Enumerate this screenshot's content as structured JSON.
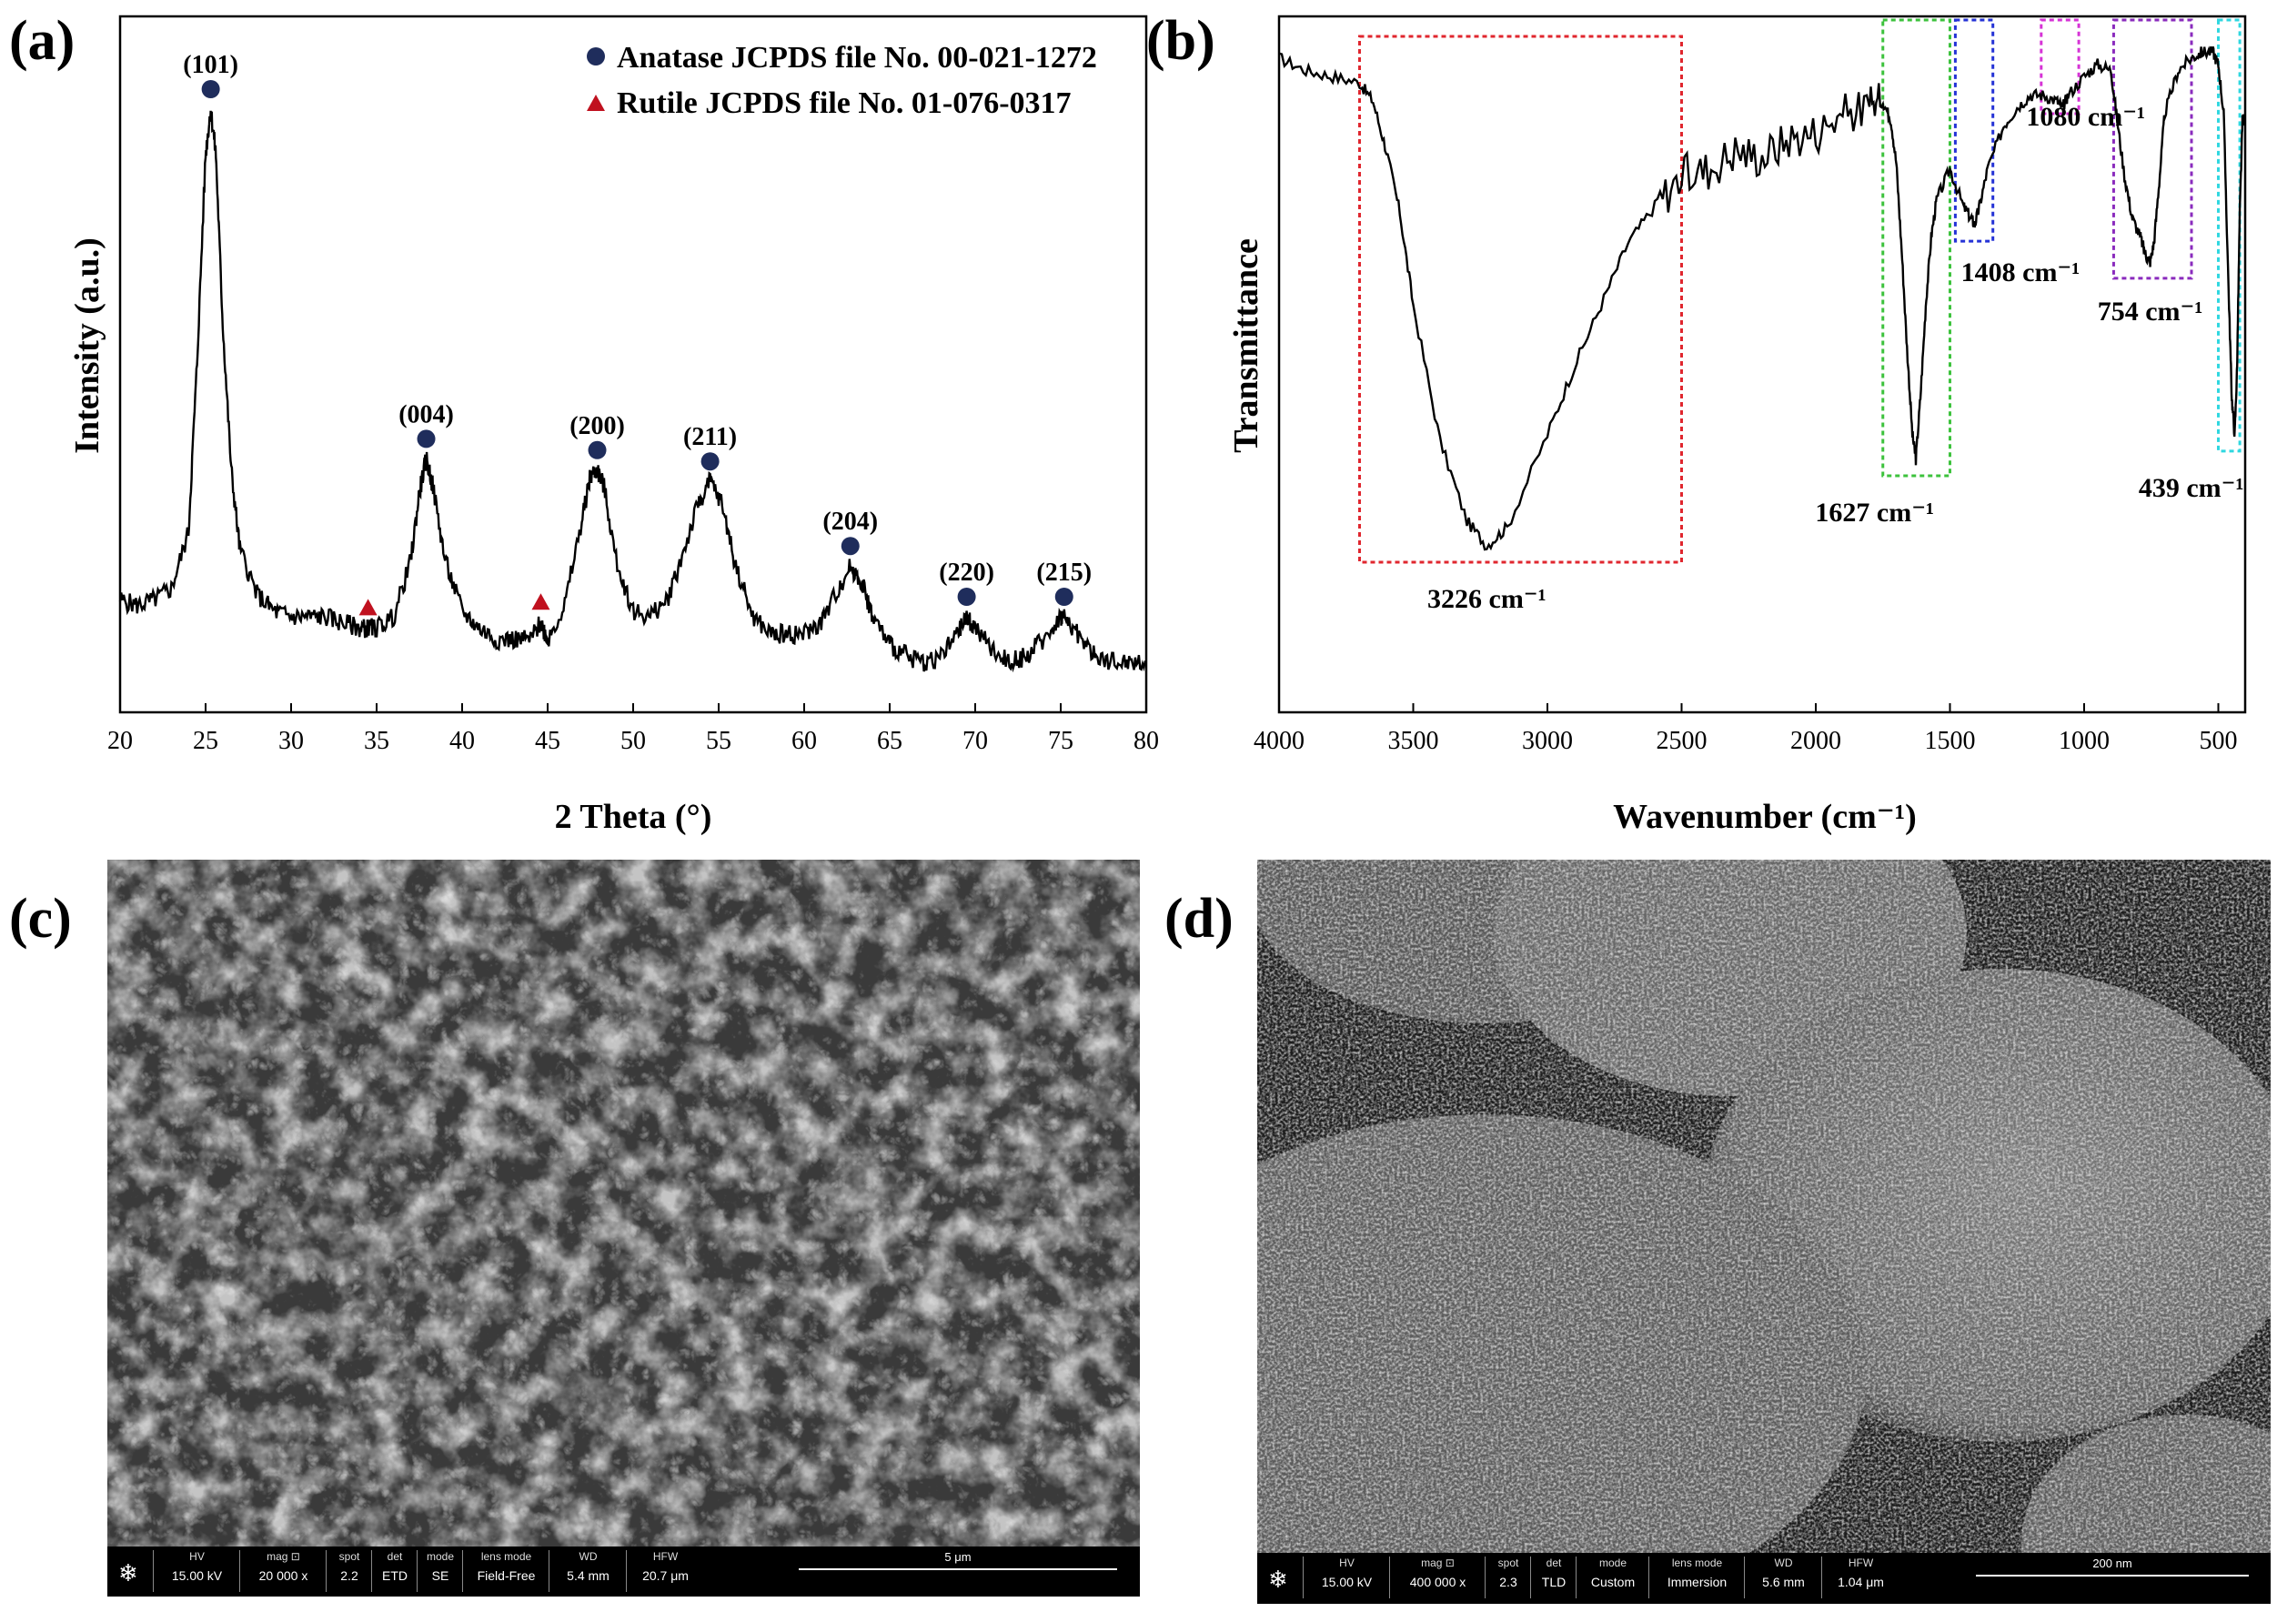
{
  "panel_labels": {
    "a": "(a)",
    "b": "(b)",
    "c": "(c)",
    "d": "(d)"
  },
  "chart_data": [
    {
      "id": "xrd",
      "type": "line",
      "xlabel": "2 Theta (°)",
      "ylabel": "Intensity (a.u.)",
      "xlim": [
        20,
        80
      ],
      "xticks": [
        20,
        25,
        30,
        35,
        40,
        45,
        50,
        55,
        60,
        65,
        70,
        75,
        80
      ],
      "legend": [
        {
          "marker": "circle",
          "color": "#1f2d5c",
          "label": "Anatase JCPDS file No. 00-021-1272"
        },
        {
          "marker": "triangle",
          "color": "#c0111f",
          "label": "Rutile JCPDS file No. 01-076-0317"
        }
      ],
      "legend_position": "top-right",
      "peaks": [
        {
          "x": 25.3,
          "label": "(101)",
          "phase": "anatase"
        },
        {
          "x": 37.9,
          "label": "(004)",
          "phase": "anatase"
        },
        {
          "x": 47.9,
          "label": "(200)",
          "phase": "anatase"
        },
        {
          "x": 54.5,
          "label": "(211)",
          "phase": "anatase"
        },
        {
          "x": 62.7,
          "label": "(204)",
          "phase": "anatase"
        },
        {
          "x": 69.5,
          "label": "(220)",
          "phase": "anatase"
        },
        {
          "x": 75.2,
          "label": "(215)",
          "phase": "anatase"
        },
        {
          "x": 34.5,
          "label": "",
          "phase": "rutile"
        },
        {
          "x": 44.6,
          "label": "",
          "phase": "rutile"
        }
      ],
      "series": [
        {
          "x": [
            20,
            21,
            22,
            23,
            24,
            24.5,
            25,
            25.3,
            25.6,
            26,
            26.5,
            27,
            28,
            29,
            30,
            31,
            32,
            33,
            34,
            34.5,
            35,
            36,
            37,
            37.5,
            37.9,
            38.3,
            39,
            40,
            41,
            42,
            43,
            44,
            44.6,
            45,
            46,
            47,
            47.5,
            47.9,
            48.3,
            49,
            50,
            51,
            52,
            53,
            53.8,
            54.5,
            55.2,
            56,
            57,
            58,
            59,
            60,
            61,
            62,
            62.7,
            63.4,
            64,
            65,
            66,
            67,
            68,
            69,
            69.5,
            70,
            71,
            72,
            73,
            74,
            75,
            75.2,
            76,
            77,
            78,
            79,
            80
          ],
          "y": [
            0.13,
            0.12,
            0.13,
            0.15,
            0.25,
            0.55,
            0.92,
            1.0,
            0.92,
            0.62,
            0.36,
            0.22,
            0.14,
            0.11,
            0.1,
            0.1,
            0.1,
            0.09,
            0.08,
            0.08,
            0.08,
            0.1,
            0.2,
            0.32,
            0.38,
            0.33,
            0.2,
            0.11,
            0.08,
            0.06,
            0.06,
            0.06,
            0.09,
            0.06,
            0.12,
            0.27,
            0.35,
            0.36,
            0.33,
            0.2,
            0.11,
            0.1,
            0.13,
            0.22,
            0.3,
            0.34,
            0.3,
            0.19,
            0.1,
            0.07,
            0.07,
            0.07,
            0.09,
            0.15,
            0.19,
            0.16,
            0.1,
            0.05,
            0.03,
            0.02,
            0.03,
            0.07,
            0.1,
            0.08,
            0.04,
            0.02,
            0.03,
            0.06,
            0.1,
            0.1,
            0.07,
            0.03,
            0.02,
            0.02,
            0.02
          ]
        }
      ]
    },
    {
      "id": "ftir",
      "type": "line",
      "xlabel": "Wavenumber (cm⁻¹)",
      "ylabel": "Transmittance",
      "xlim": [
        4000,
        400
      ],
      "xticks": [
        4000,
        3500,
        3000,
        2500,
        2000,
        1500,
        1000,
        500
      ],
      "series": [
        {
          "x": [
            4000,
            3900,
            3800,
            3700,
            3650,
            3600,
            3550,
            3500,
            3400,
            3300,
            3226,
            3150,
            3000,
            2900,
            2800,
            2700,
            2600,
            2500,
            2400,
            2300,
            2200,
            2100,
            2000,
            1900,
            1800,
            1750,
            1720,
            1700,
            1680,
            1660,
            1640,
            1627,
            1610,
            1590,
            1570,
            1550,
            1500,
            1450,
            1420,
            1408,
            1390,
            1360,
            1300,
            1250,
            1200,
            1150,
            1100,
            1080,
            1060,
            1000,
            950,
            900,
            880,
            850,
            820,
            790,
            770,
            754,
            740,
            720,
            700,
            650,
            600,
            560,
            520,
            500,
            480,
            460,
            450,
            439,
            430,
            420,
            410,
            400
          ],
          "y": [
            0.95,
            0.93,
            0.92,
            0.91,
            0.88,
            0.8,
            0.7,
            0.55,
            0.33,
            0.2,
            0.16,
            0.19,
            0.34,
            0.45,
            0.55,
            0.65,
            0.71,
            0.76,
            0.77,
            0.8,
            0.79,
            0.82,
            0.83,
            0.86,
            0.87,
            0.88,
            0.85,
            0.78,
            0.64,
            0.48,
            0.34,
            0.3,
            0.4,
            0.55,
            0.66,
            0.72,
            0.77,
            0.71,
            0.69,
            0.68,
            0.71,
            0.77,
            0.84,
            0.87,
            0.89,
            0.89,
            0.88,
            0.87,
            0.89,
            0.92,
            0.94,
            0.93,
            0.86,
            0.76,
            0.69,
            0.66,
            0.63,
            0.62,
            0.65,
            0.75,
            0.86,
            0.93,
            0.95,
            0.96,
            0.96,
            0.94,
            0.86,
            0.55,
            0.4,
            0.34,
            0.45,
            0.7,
            0.85,
            0.85
          ]
        }
      ],
      "bands": [
        {
          "label": "3226 cm⁻¹",
          "from": 3700,
          "to": 2500,
          "color": "#e0262e"
        },
        {
          "label": "1627 cm⁻¹",
          "from": 1750,
          "to": 1500,
          "color": "#3cc23c"
        },
        {
          "label": "1408 cm⁻¹",
          "from": 1480,
          "to": 1340,
          "color": "#2432d6"
        },
        {
          "label": "1080 cm⁻¹",
          "from": 1160,
          "to": 1020,
          "color": "#d633d6"
        },
        {
          "label": "754 cm⁻¹",
          "from": 890,
          "to": 600,
          "color": "#8a2bbd"
        },
        {
          "label": "439 cm⁻¹",
          "from": 500,
          "to": 420,
          "color": "#2fd7e0"
        }
      ]
    }
  ],
  "sem_c": {
    "labels": [
      "HV",
      "mag ⊡",
      "spot",
      "det",
      "mode",
      "lens mode",
      "WD",
      "HFW"
    ],
    "values": [
      "15.00 kV",
      "20 000 x",
      "2.2",
      "ETD",
      "SE",
      "Field-Free",
      "5.4 mm",
      "20.7 μm"
    ],
    "scale": "5 μm"
  },
  "sem_d": {
    "labels": [
      "HV",
      "mag ⊡",
      "spot",
      "det",
      "mode",
      "lens mode",
      "WD",
      "HFW"
    ],
    "values": [
      "15.00 kV",
      "400 000 x",
      "2.3",
      "TLD",
      "Custom",
      "Immersion",
      "5.6 mm",
      "1.04 μm"
    ],
    "scale": "200 nm"
  }
}
